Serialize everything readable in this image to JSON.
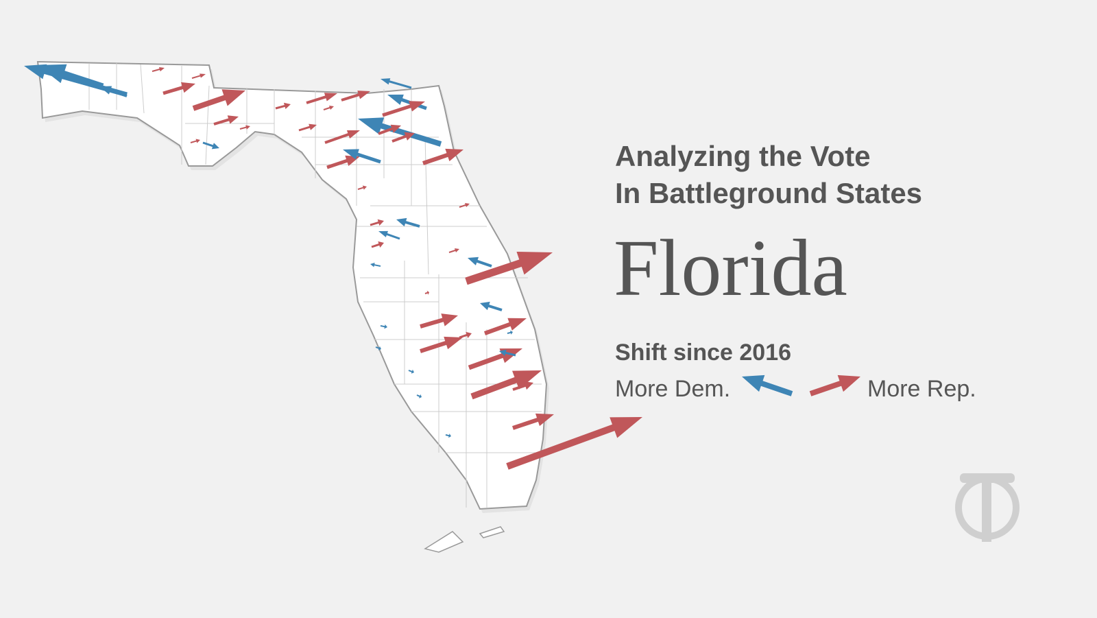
{
  "header": {
    "title_line1": "Analyzing the Vote",
    "title_line2": "In Battleground States",
    "state": "Florida"
  },
  "legend": {
    "title": "Shift since 2016",
    "dem_label": "More Dem.",
    "rep_label": "More Rep."
  }
}
